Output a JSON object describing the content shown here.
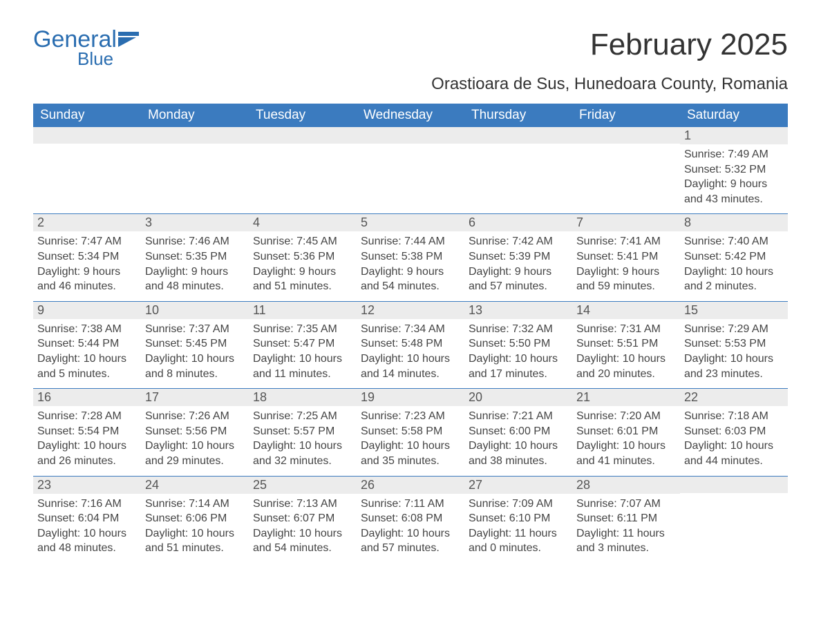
{
  "logo": {
    "text_main": "General",
    "text_sub": "Blue",
    "color": "#2a6db0"
  },
  "title": "February 2025",
  "location": "Orastioara de Sus, Hunedoara County, Romania",
  "header_bg": "#3b7bbf",
  "header_fg": "#ffffff",
  "daynum_bg": "#ececec",
  "text_color": "#444444",
  "weekdays": [
    "Sunday",
    "Monday",
    "Tuesday",
    "Wednesday",
    "Thursday",
    "Friday",
    "Saturday"
  ],
  "weeks": [
    [
      {
        "n": "",
        "sr": "",
        "ss": "",
        "dl": ""
      },
      {
        "n": "",
        "sr": "",
        "ss": "",
        "dl": ""
      },
      {
        "n": "",
        "sr": "",
        "ss": "",
        "dl": ""
      },
      {
        "n": "",
        "sr": "",
        "ss": "",
        "dl": ""
      },
      {
        "n": "",
        "sr": "",
        "ss": "",
        "dl": ""
      },
      {
        "n": "",
        "sr": "",
        "ss": "",
        "dl": ""
      },
      {
        "n": "1",
        "sr": "Sunrise: 7:49 AM",
        "ss": "Sunset: 5:32 PM",
        "dl": "Daylight: 9 hours and 43 minutes."
      }
    ],
    [
      {
        "n": "2",
        "sr": "Sunrise: 7:47 AM",
        "ss": "Sunset: 5:34 PM",
        "dl": "Daylight: 9 hours and 46 minutes."
      },
      {
        "n": "3",
        "sr": "Sunrise: 7:46 AM",
        "ss": "Sunset: 5:35 PM",
        "dl": "Daylight: 9 hours and 48 minutes."
      },
      {
        "n": "4",
        "sr": "Sunrise: 7:45 AM",
        "ss": "Sunset: 5:36 PM",
        "dl": "Daylight: 9 hours and 51 minutes."
      },
      {
        "n": "5",
        "sr": "Sunrise: 7:44 AM",
        "ss": "Sunset: 5:38 PM",
        "dl": "Daylight: 9 hours and 54 minutes."
      },
      {
        "n": "6",
        "sr": "Sunrise: 7:42 AM",
        "ss": "Sunset: 5:39 PM",
        "dl": "Daylight: 9 hours and 57 minutes."
      },
      {
        "n": "7",
        "sr": "Sunrise: 7:41 AM",
        "ss": "Sunset: 5:41 PM",
        "dl": "Daylight: 9 hours and 59 minutes."
      },
      {
        "n": "8",
        "sr": "Sunrise: 7:40 AM",
        "ss": "Sunset: 5:42 PM",
        "dl": "Daylight: 10 hours and 2 minutes."
      }
    ],
    [
      {
        "n": "9",
        "sr": "Sunrise: 7:38 AM",
        "ss": "Sunset: 5:44 PM",
        "dl": "Daylight: 10 hours and 5 minutes."
      },
      {
        "n": "10",
        "sr": "Sunrise: 7:37 AM",
        "ss": "Sunset: 5:45 PM",
        "dl": "Daylight: 10 hours and 8 minutes."
      },
      {
        "n": "11",
        "sr": "Sunrise: 7:35 AM",
        "ss": "Sunset: 5:47 PM",
        "dl": "Daylight: 10 hours and 11 minutes."
      },
      {
        "n": "12",
        "sr": "Sunrise: 7:34 AM",
        "ss": "Sunset: 5:48 PM",
        "dl": "Daylight: 10 hours and 14 minutes."
      },
      {
        "n": "13",
        "sr": "Sunrise: 7:32 AM",
        "ss": "Sunset: 5:50 PM",
        "dl": "Daylight: 10 hours and 17 minutes."
      },
      {
        "n": "14",
        "sr": "Sunrise: 7:31 AM",
        "ss": "Sunset: 5:51 PM",
        "dl": "Daylight: 10 hours and 20 minutes."
      },
      {
        "n": "15",
        "sr": "Sunrise: 7:29 AM",
        "ss": "Sunset: 5:53 PM",
        "dl": "Daylight: 10 hours and 23 minutes."
      }
    ],
    [
      {
        "n": "16",
        "sr": "Sunrise: 7:28 AM",
        "ss": "Sunset: 5:54 PM",
        "dl": "Daylight: 10 hours and 26 minutes."
      },
      {
        "n": "17",
        "sr": "Sunrise: 7:26 AM",
        "ss": "Sunset: 5:56 PM",
        "dl": "Daylight: 10 hours and 29 minutes."
      },
      {
        "n": "18",
        "sr": "Sunrise: 7:25 AM",
        "ss": "Sunset: 5:57 PM",
        "dl": "Daylight: 10 hours and 32 minutes."
      },
      {
        "n": "19",
        "sr": "Sunrise: 7:23 AM",
        "ss": "Sunset: 5:58 PM",
        "dl": "Daylight: 10 hours and 35 minutes."
      },
      {
        "n": "20",
        "sr": "Sunrise: 7:21 AM",
        "ss": "Sunset: 6:00 PM",
        "dl": "Daylight: 10 hours and 38 minutes."
      },
      {
        "n": "21",
        "sr": "Sunrise: 7:20 AM",
        "ss": "Sunset: 6:01 PM",
        "dl": "Daylight: 10 hours and 41 minutes."
      },
      {
        "n": "22",
        "sr": "Sunrise: 7:18 AM",
        "ss": "Sunset: 6:03 PM",
        "dl": "Daylight: 10 hours and 44 minutes."
      }
    ],
    [
      {
        "n": "23",
        "sr": "Sunrise: 7:16 AM",
        "ss": "Sunset: 6:04 PM",
        "dl": "Daylight: 10 hours and 48 minutes."
      },
      {
        "n": "24",
        "sr": "Sunrise: 7:14 AM",
        "ss": "Sunset: 6:06 PM",
        "dl": "Daylight: 10 hours and 51 minutes."
      },
      {
        "n": "25",
        "sr": "Sunrise: 7:13 AM",
        "ss": "Sunset: 6:07 PM",
        "dl": "Daylight: 10 hours and 54 minutes."
      },
      {
        "n": "26",
        "sr": "Sunrise: 7:11 AM",
        "ss": "Sunset: 6:08 PM",
        "dl": "Daylight: 10 hours and 57 minutes."
      },
      {
        "n": "27",
        "sr": "Sunrise: 7:09 AM",
        "ss": "Sunset: 6:10 PM",
        "dl": "Daylight: 11 hours and 0 minutes."
      },
      {
        "n": "28",
        "sr": "Sunrise: 7:07 AM",
        "ss": "Sunset: 6:11 PM",
        "dl": "Daylight: 11 hours and 3 minutes."
      },
      {
        "n": "",
        "sr": "",
        "ss": "",
        "dl": ""
      }
    ]
  ]
}
